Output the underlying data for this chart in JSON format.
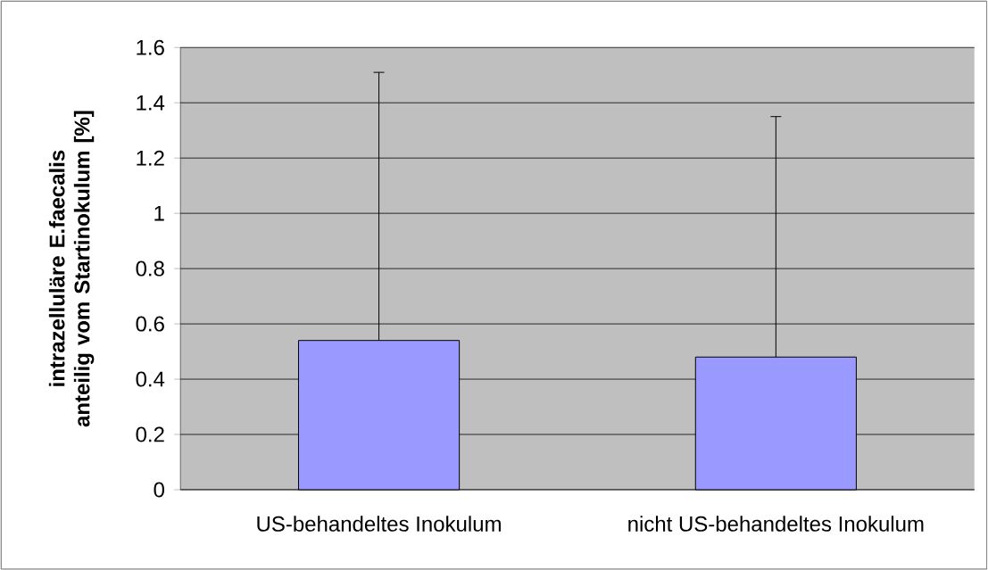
{
  "chart_data": {
    "type": "bar",
    "ylabel": "intrazelluläre E.faecalis anteilig vom Startinokulum [%]",
    "categories": [
      "US-behandeltes Inokulum",
      "nicht US-behandeltes Inokulum"
    ],
    "values": [
      0.54,
      0.48
    ],
    "errors": [
      [
        0.54,
        1.51
      ],
      [
        0.48,
        1.35
      ]
    ],
    "color": "#9999ff",
    "ylim": [
      0,
      1.6
    ],
    "yticks": [
      0,
      0.2,
      0.4,
      0.6,
      0.8,
      1,
      1.2,
      1.4,
      1.6
    ],
    "grid": "y"
  }
}
